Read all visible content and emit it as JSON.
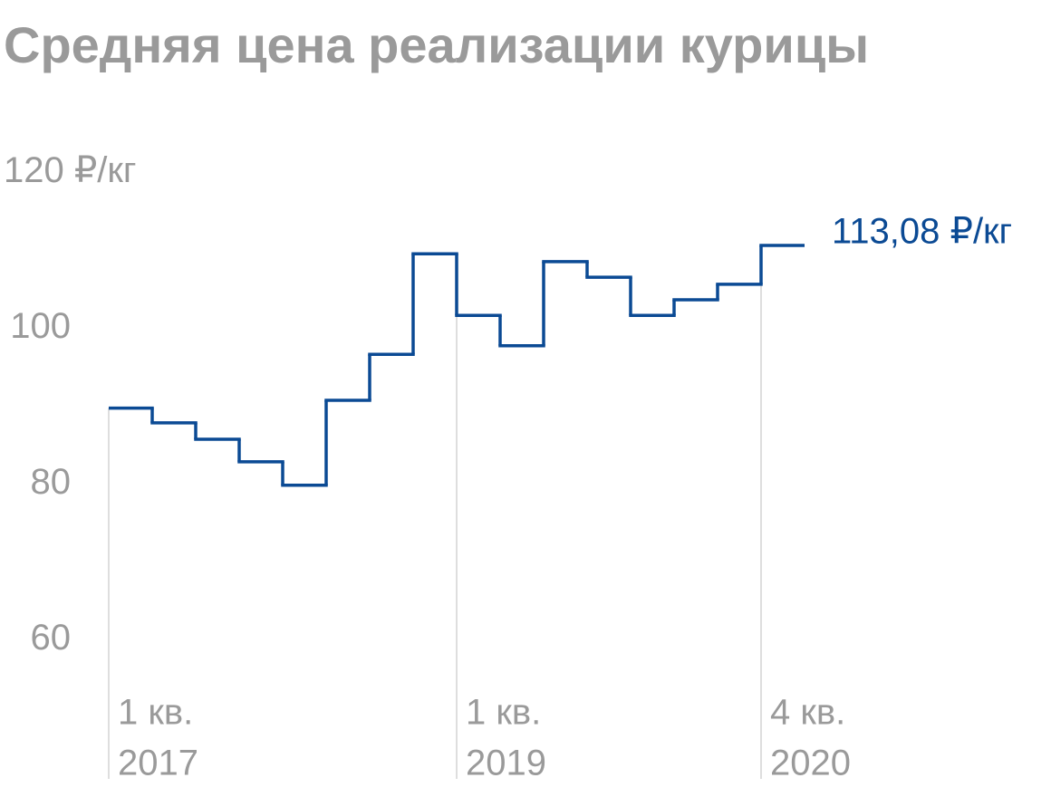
{
  "chart_data": {
    "type": "step",
    "title": "Средняя цена реализации курицы",
    "categories": [
      [
        "1 кв.",
        "2017"
      ],
      null,
      null,
      null,
      null,
      null,
      null,
      null,
      [
        "1 кв.",
        "2019"
      ],
      null,
      null,
      null,
      null,
      null,
      null,
      [
        "4 кв.",
        "2020"
      ]
    ],
    "values": [
      92.2,
      90.3,
      88.2,
      85.3,
      82.3,
      93.2,
      99.1,
      112.0,
      104.1,
      100.2,
      111.0,
      109.0,
      104.1,
      106.1,
      108.1,
      113.08
    ],
    "value_labels": [
      null,
      null,
      null,
      null,
      null,
      null,
      null,
      null,
      null,
      null,
      null,
      null,
      null,
      null,
      null,
      "113,08 ₽/кг"
    ],
    "color": "#0b4a94",
    "ylim": [
      45,
      125
    ],
    "yticks": [
      60,
      80,
      100,
      {
        "value": 120,
        "label": "120 ₽/кг"
      }
    ],
    "grid": false
  }
}
